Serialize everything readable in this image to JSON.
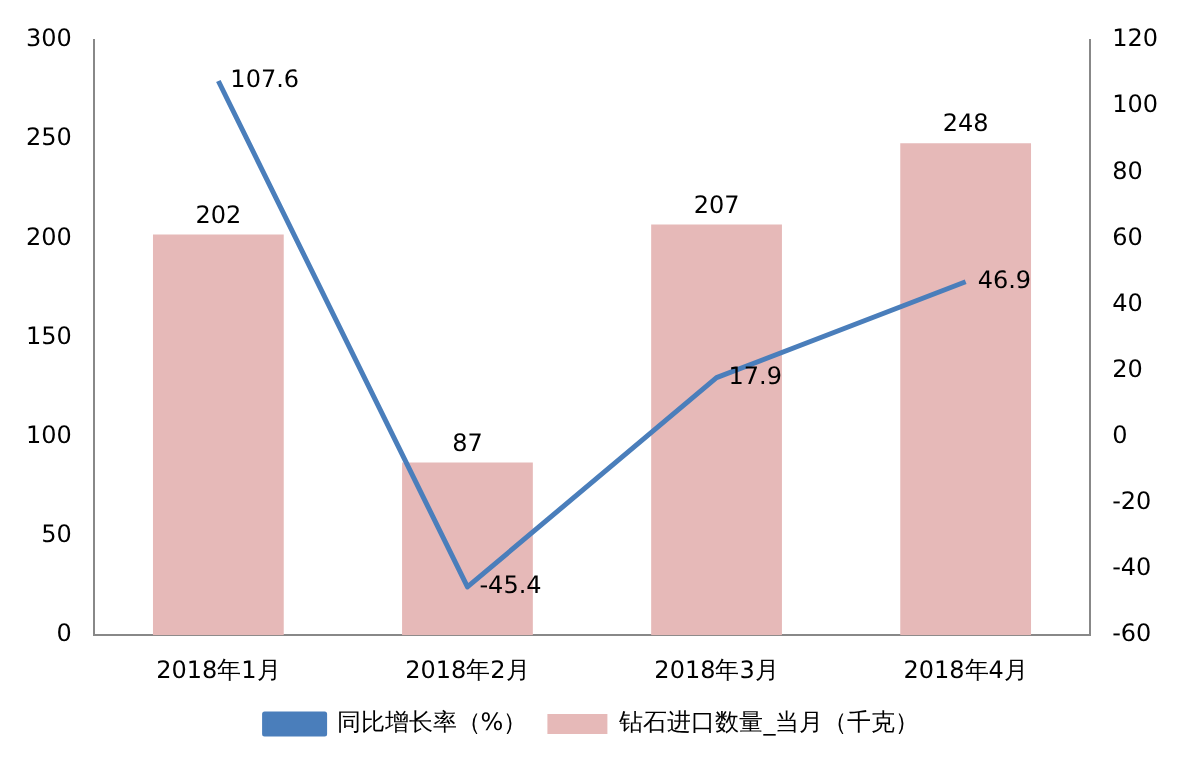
{
  "chart_data": {
    "type": "bar",
    "categories": [
      "2018年1月",
      "2018年2月",
      "2018年3月",
      "2018年4月"
    ],
    "series": [
      {
        "name": "钻石进口数量_当月（千克）",
        "color": "#e6b9b8",
        "values": [
          202,
          87,
          207,
          248
        ]
      },
      {
        "name": "同比增长率（%）",
        "type": "line",
        "axis": "y2",
        "color": "#4a7ebb",
        "values": [
          107.6,
          -45.4,
          17.9,
          46.9
        ]
      }
    ],
    "ylim": [
      0,
      300
    ],
    "yticks": [
      0,
      50,
      100,
      150,
      200,
      250,
      300
    ],
    "y2lim": [
      -60,
      120
    ],
    "y2ticks": [
      -60,
      -40,
      -20,
      0,
      20,
      40,
      60,
      80,
      100,
      120
    ],
    "data_labels": true,
    "grid": false,
    "legend": "bottom",
    "marker": "none"
  }
}
